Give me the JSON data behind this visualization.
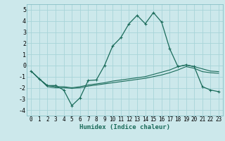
{
  "xlabel": "Humidex (Indice chaleur)",
  "bg_color": "#cce8eb",
  "grid_color": "#a8d4d8",
  "line_color": "#1a6b5a",
  "xlim": [
    -0.5,
    23.5
  ],
  "ylim": [
    -4.5,
    5.5
  ],
  "xticks": [
    0,
    1,
    2,
    3,
    4,
    5,
    6,
    7,
    8,
    9,
    10,
    11,
    12,
    13,
    14,
    15,
    16,
    17,
    18,
    19,
    20,
    21,
    22,
    23
  ],
  "yticks": [
    -4,
    -3,
    -2,
    -1,
    0,
    1,
    2,
    3,
    4,
    5
  ],
  "line1_x": [
    0,
    1,
    2,
    3,
    4,
    5,
    6,
    7,
    8,
    9,
    10,
    11,
    12,
    13,
    14,
    15,
    16,
    17,
    18,
    19,
    20,
    21,
    22,
    23
  ],
  "line1_y": [
    -0.5,
    -1.2,
    -1.8,
    -1.8,
    -2.2,
    -3.6,
    -2.9,
    -1.35,
    -1.3,
    0.0,
    1.75,
    2.5,
    3.75,
    4.5,
    3.75,
    4.75,
    3.9,
    1.5,
    -0.1,
    0.05,
    -0.1,
    -1.9,
    -2.2,
    -2.35
  ],
  "line2_x": [
    0,
    1,
    2,
    3,
    4,
    5,
    6,
    7,
    8,
    9,
    10,
    11,
    12,
    13,
    14,
    15,
    16,
    17,
    18,
    19,
    20,
    21,
    22,
    23
  ],
  "line2_y": [
    -0.5,
    -1.2,
    -1.8,
    -1.9,
    -1.9,
    -2.0,
    -1.9,
    -1.75,
    -1.65,
    -1.55,
    -1.4,
    -1.3,
    -1.2,
    -1.1,
    -1.0,
    -0.8,
    -0.6,
    -0.4,
    -0.1,
    0.05,
    -0.1,
    -0.3,
    -0.5,
    -0.55
  ],
  "line3_x": [
    0,
    1,
    2,
    3,
    4,
    5,
    6,
    7,
    8,
    9,
    10,
    11,
    12,
    13,
    14,
    15,
    16,
    17,
    18,
    19,
    20,
    21,
    22,
    23
  ],
  "line3_y": [
    -0.5,
    -1.2,
    -1.9,
    -2.0,
    -2.0,
    -2.05,
    -2.0,
    -1.85,
    -1.75,
    -1.65,
    -1.55,
    -1.45,
    -1.35,
    -1.25,
    -1.15,
    -1.0,
    -0.85,
    -0.65,
    -0.4,
    -0.1,
    -0.25,
    -0.55,
    -0.65,
    -0.7
  ]
}
